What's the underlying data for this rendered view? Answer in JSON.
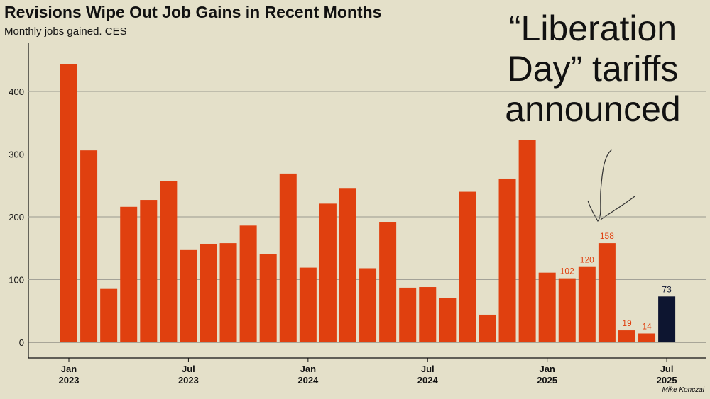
{
  "chart_data": {
    "type": "bar",
    "title": "Revisions Wipe Out Job Gains in Recent Months",
    "subtitle": "Monthly jobs gained. CES",
    "annotation": "“Liberation Day” tariffs announced",
    "credit": "Mike Konczal",
    "categories": [
      "Jan 2023",
      null,
      null,
      null,
      null,
      null,
      "Jul 2023",
      null,
      null,
      null,
      null,
      null,
      "Jan 2024",
      null,
      null,
      null,
      null,
      null,
      "Jul 2024",
      null,
      null,
      null,
      null,
      null,
      "Jan 2025",
      null,
      null,
      null,
      null,
      null,
      "Jul 2025"
    ],
    "values": [
      444,
      306,
      85,
      216,
      227,
      257,
      147,
      157,
      158,
      186,
      141,
      269,
      119,
      221,
      246,
      118,
      192,
      87,
      88,
      71,
      240,
      44,
      261,
      323,
      111,
      102,
      120,
      158,
      19,
      14,
      73
    ],
    "value_labels": [
      null,
      null,
      null,
      null,
      null,
      null,
      null,
      null,
      null,
      null,
      null,
      null,
      null,
      null,
      null,
      null,
      null,
      null,
      null,
      null,
      null,
      null,
      null,
      null,
      null,
      "102",
      "120",
      "158",
      "19",
      "14",
      "73"
    ],
    "colors": [
      "#e0400f",
      "#e0400f",
      "#e0400f",
      "#e0400f",
      "#e0400f",
      "#e0400f",
      "#e0400f",
      "#e0400f",
      "#e0400f",
      "#e0400f",
      "#e0400f",
      "#e0400f",
      "#e0400f",
      "#e0400f",
      "#e0400f",
      "#e0400f",
      "#e0400f",
      "#e0400f",
      "#e0400f",
      "#e0400f",
      "#e0400f",
      "#e0400f",
      "#e0400f",
      "#e0400f",
      "#e0400f",
      "#e0400f",
      "#e0400f",
      "#e0400f",
      "#e0400f",
      "#e0400f",
      "#0d1530"
    ],
    "ylim": [
      -25,
      478
    ],
    "yticks": [
      0,
      100,
      200,
      300,
      400
    ],
    "grid": true
  }
}
